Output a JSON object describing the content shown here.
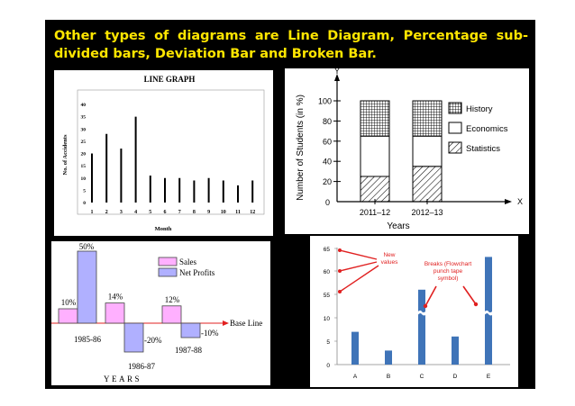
{
  "heading": "Other types of diagrams are Line Diagram, Percentage sub-divided bars, Deviation Bar and Broken Bar.",
  "colors": {
    "slide_bg": "#000000",
    "heading": "#ffe600",
    "deviation_sales": "#ffb0ff",
    "deviation_profits": "#b0b0ff",
    "broken_bar": "#3f74b8",
    "annotation": "#e02020"
  },
  "chart_data": [
    {
      "type": "bar",
      "title": "LINE GRAPH",
      "xlabel": "Month",
      "ylabel": "No. of Accidents",
      "categories": [
        "1",
        "2",
        "3",
        "4",
        "5",
        "6",
        "7",
        "8",
        "9",
        "10",
        "11",
        "12"
      ],
      "values": [
        20,
        28,
        22,
        35,
        11,
        10,
        10,
        9,
        10,
        9,
        7,
        9
      ],
      "ylim": [
        0,
        40
      ],
      "yticks": [
        "0",
        "5",
        "10",
        "15",
        "20",
        "25",
        "30",
        "35",
        "40"
      ]
    },
    {
      "type": "bar",
      "stacked": true,
      "xlabel": "Years",
      "ylabel": "Number of Students (in %)",
      "x_axis_letter": "X",
      "y_axis_letter": "Y",
      "origin_label": "0",
      "categories": [
        "2011–12",
        "2012–13"
      ],
      "series": [
        {
          "name": "Statistics",
          "values": [
            25,
            35
          ],
          "pattern": "hatch"
        },
        {
          "name": "Economics",
          "values": [
            40,
            30
          ],
          "pattern": "white"
        },
        {
          "name": "History",
          "values": [
            35,
            35
          ],
          "pattern": "grid"
        }
      ],
      "ylim": [
        0,
        100
      ],
      "yticks": [
        "20",
        "40",
        "60",
        "80",
        "100"
      ],
      "legend": "right"
    },
    {
      "type": "bar",
      "xlabel": "YEARS",
      "baseline_label": "Base Line",
      "categories": [
        "1985-86",
        "1986-87",
        "1987-88"
      ],
      "series": [
        {
          "name": "Sales",
          "values": [
            10,
            14,
            12
          ],
          "labels": [
            "10%",
            "14%",
            "12%"
          ]
        },
        {
          "name": "Net Profits",
          "values": [
            50,
            -20,
            -10
          ],
          "labels": [
            "50%",
            "-20%",
            "-10%"
          ]
        }
      ],
      "legend": "top-center"
    },
    {
      "type": "bar",
      "categories": [
        "A",
        "B",
        "C",
        "D",
        "E"
      ],
      "values": [
        7,
        3,
        56,
        6,
        63
      ],
      "broken": [
        false,
        false,
        true,
        false,
        true
      ],
      "yticks": [
        "0",
        "5",
        "10",
        "55",
        "60",
        "65"
      ],
      "annotations": [
        "New values",
        "Breaks (Flowchart punch tape symbol)"
      ]
    }
  ]
}
